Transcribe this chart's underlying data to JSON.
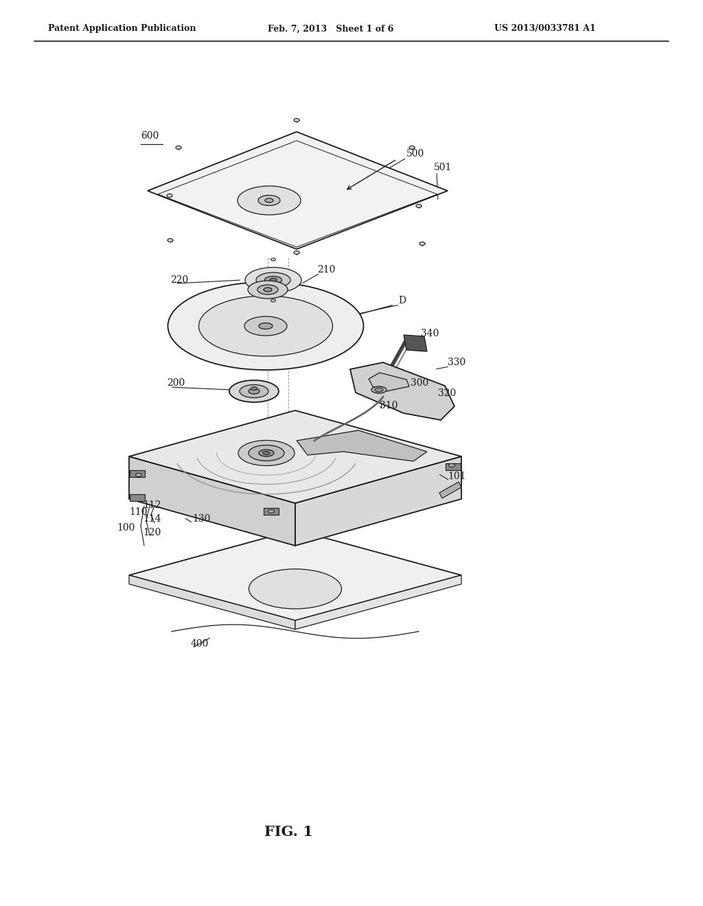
{
  "bg_color": "#ffffff",
  "line_color": "#1a1a1a",
  "header_left": "Patent Application Publication",
  "header_mid": "Feb. 7, 2013   Sheet 1 of 6",
  "header_right": "US 2013/0033781 A1",
  "fig_label": "FIG. 1"
}
